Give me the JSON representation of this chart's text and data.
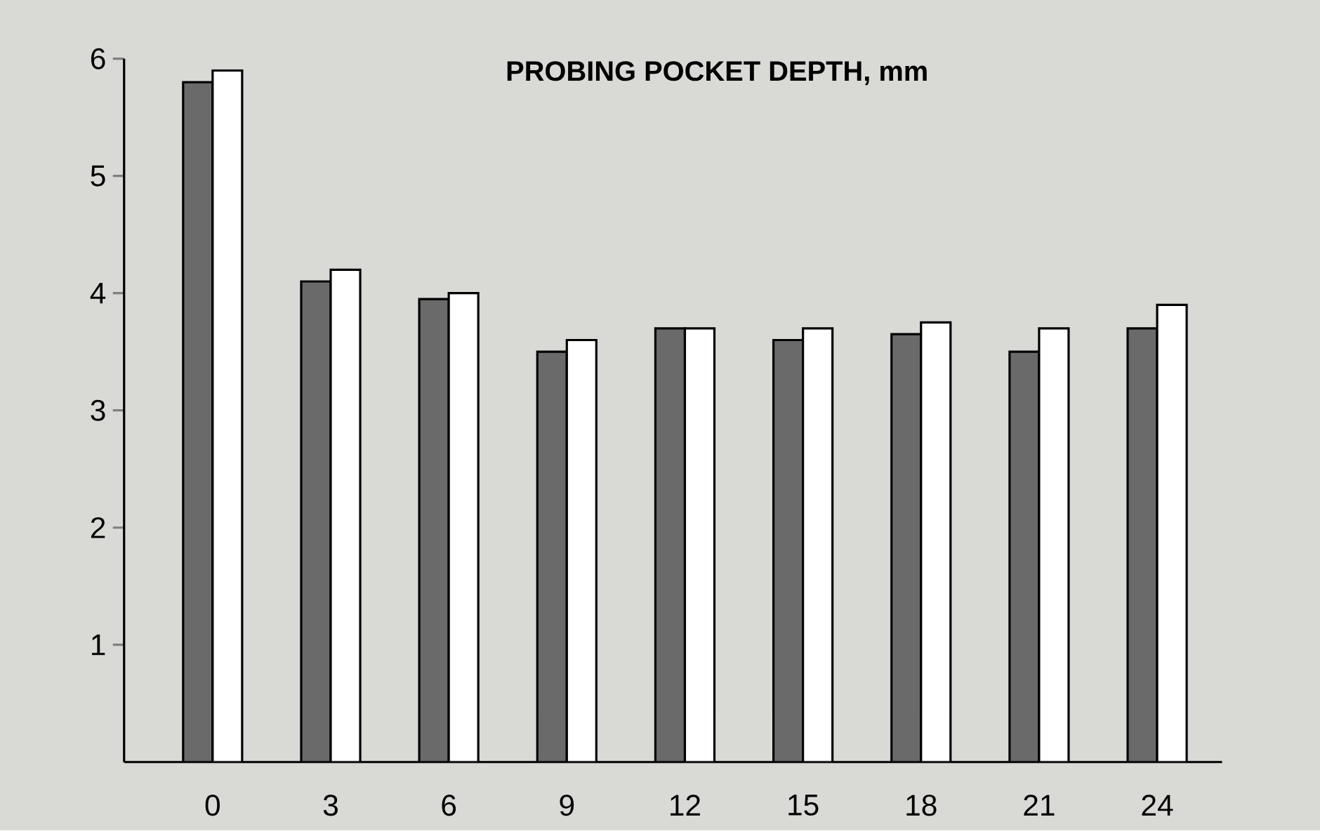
{
  "chart_data": {
    "type": "bar",
    "title": "PROBING POCKET DEPTH, mm",
    "categories": [
      "0",
      "3",
      "6",
      "9",
      "12",
      "15",
      "18",
      "21",
      "24"
    ],
    "series": [
      {
        "color": "#6a6a6a",
        "values": [
          5.8,
          4.1,
          3.95,
          3.5,
          3.7,
          3.6,
          3.65,
          3.5,
          3.7
        ]
      },
      {
        "color": "#ffffff",
        "values": [
          5.9,
          4.2,
          4.0,
          3.6,
          3.7,
          3.7,
          3.75,
          3.7,
          3.9
        ]
      }
    ],
    "ylim": [
      0,
      6
    ],
    "yticks": [
      1,
      2,
      3,
      4,
      5,
      6
    ]
  }
}
